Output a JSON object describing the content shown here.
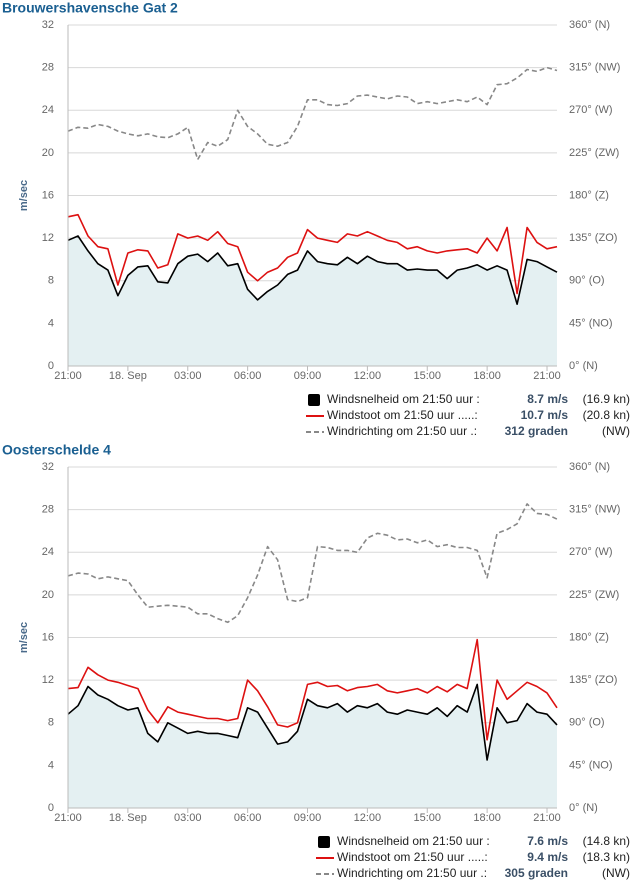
{
  "chart_data": [
    {
      "type": "line",
      "title": "Brouwershavensche Gat 2",
      "y_label": "m/sec",
      "x": [
        0,
        0.5,
        1,
        1.5,
        2,
        2.5,
        3,
        3.5,
        4,
        4.5,
        5,
        5.5,
        6,
        6.5,
        7,
        7.5,
        8,
        8.5,
        9,
        9.5,
        10,
        10.5,
        11,
        11.5,
        12,
        12.5,
        13,
        13.5,
        14,
        14.5,
        15,
        15.5,
        16,
        16.5,
        17,
        17.5,
        18,
        18.5,
        19,
        19.5,
        20,
        20.5,
        21,
        21.5,
        22,
        22.5,
        23,
        23.5,
        24,
        24.5
      ],
      "xlim": [
        0,
        24.5
      ],
      "xticks": [
        {
          "value": 0,
          "label": "21:00"
        },
        {
          "value": 3,
          "label": "18. Sep"
        },
        {
          "value": 6,
          "label": "03:00"
        },
        {
          "value": 9,
          "label": "06:00"
        },
        {
          "value": 12,
          "label": "09:00"
        },
        {
          "value": 15,
          "label": "12:00"
        },
        {
          "value": 18,
          "label": "15:00"
        },
        {
          "value": 21,
          "label": "18:00"
        },
        {
          "value": 24,
          "label": "21:00"
        }
      ],
      "ylim": [
        0,
        32
      ],
      "yticks": [
        0,
        4,
        8,
        12,
        16,
        20,
        24,
        28,
        32
      ],
      "y2lim": [
        0,
        360
      ],
      "y2ticks": [
        {
          "value": 0,
          "label": "0° (N)"
        },
        {
          "value": 45,
          "label": "45° (NO)"
        },
        {
          "value": 90,
          "label": "90° (O)"
        },
        {
          "value": 135,
          "label": "135° (ZO)"
        },
        {
          "value": 180,
          "label": "180° (Z)"
        },
        {
          "value": 225,
          "label": "225° (ZW)"
        },
        {
          "value": 270,
          "label": "270° (W)"
        },
        {
          "value": 315,
          "label": "315° (NW)"
        },
        {
          "value": 360,
          "label": "360° (N)"
        }
      ],
      "grid": true,
      "series": [
        {
          "name": "Windsnelheid om 21:50 uur :",
          "current": "8.7 m/s",
          "current_alt": "(16.9 kn)",
          "color": "#000000",
          "fill": "#e4f0f2",
          "values": [
            11.8,
            12.2,
            10.8,
            9.6,
            9.0,
            6.6,
            8.5,
            9.3,
            9.4,
            7.9,
            7.8,
            9.6,
            10.3,
            10.5,
            9.8,
            10.6,
            9.4,
            9.6,
            7.2,
            6.2,
            7.0,
            7.6,
            8.6,
            9.0,
            10.8,
            9.8,
            9.6,
            9.5,
            10.2,
            9.6,
            10.3,
            9.8,
            9.6,
            9.6,
            9.0,
            9.1,
            9.0,
            9.0,
            8.2,
            9.0,
            9.2,
            9.5,
            9.0,
            9.4,
            9.0,
            5.8,
            10.0,
            9.8,
            9.3,
            8.8
          ]
        },
        {
          "name": "Windstoot om 21:50 uur .....:",
          "current": "10.7 m/s",
          "current_alt": "(20.8 kn)",
          "color": "#dd1111",
          "values": [
            14.0,
            14.2,
            12.2,
            11.2,
            11.0,
            7.6,
            10.6,
            10.9,
            10.8,
            9.2,
            9.5,
            12.4,
            12.0,
            12.2,
            11.8,
            12.6,
            11.5,
            11.2,
            8.8,
            8.0,
            8.8,
            9.2,
            10.2,
            10.6,
            12.8,
            12.0,
            11.8,
            11.6,
            12.4,
            12.2,
            12.6,
            12.2,
            11.8,
            11.6,
            11.0,
            11.2,
            10.8,
            10.6,
            10.8,
            10.9,
            11.0,
            10.6,
            12.0,
            10.8,
            13.0,
            6.8,
            13.0,
            11.6,
            11.0,
            11.2
          ]
        },
        {
          "name": "Windrichting om 21:50 uur .:",
          "current": "312 graden",
          "current_alt": "(NW)",
          "color": "#888888",
          "dash": true,
          "axis": "y2",
          "values": [
            248,
            252,
            251,
            255,
            253,
            248,
            245,
            243,
            245,
            242,
            241,
            245,
            252,
            218,
            236,
            232,
            239,
            270,
            253,
            245,
            234,
            232,
            236,
            253,
            281,
            281,
            276,
            275,
            277,
            285,
            286,
            284,
            282,
            285,
            284,
            277,
            279,
            277,
            279,
            281,
            279,
            284,
            276,
            297,
            298,
            304,
            313,
            311,
            315,
            312
          ]
        }
      ]
    },
    {
      "type": "line",
      "title": "Oosterschelde 4",
      "y_label": "m/sec",
      "x": [
        0,
        0.5,
        1,
        1.5,
        2,
        2.5,
        3,
        3.5,
        4,
        4.5,
        5,
        5.5,
        6,
        6.5,
        7,
        7.5,
        8,
        8.5,
        9,
        9.5,
        10,
        10.5,
        11,
        11.5,
        12,
        12.5,
        13,
        13.5,
        14,
        14.5,
        15,
        15.5,
        16,
        16.5,
        17,
        17.5,
        18,
        18.5,
        19,
        19.5,
        20,
        20.5,
        21,
        21.5,
        22,
        22.5,
        23,
        23.5,
        24,
        24.5
      ],
      "xlim": [
        0,
        24.5
      ],
      "xticks": [
        {
          "value": 0,
          "label": "21:00"
        },
        {
          "value": 3,
          "label": "18. Sep"
        },
        {
          "value": 6,
          "label": "03:00"
        },
        {
          "value": 9,
          "label": "06:00"
        },
        {
          "value": 12,
          "label": "09:00"
        },
        {
          "value": 15,
          "label": "12:00"
        },
        {
          "value": 18,
          "label": "15:00"
        },
        {
          "value": 21,
          "label": "18:00"
        },
        {
          "value": 24,
          "label": "21:00"
        }
      ],
      "ylim": [
        0,
        32
      ],
      "yticks": [
        0,
        4,
        8,
        12,
        16,
        20,
        24,
        28,
        32
      ],
      "y2lim": [
        0,
        360
      ],
      "y2ticks": [
        {
          "value": 0,
          "label": "0° (N)"
        },
        {
          "value": 45,
          "label": "45° (NO)"
        },
        {
          "value": 90,
          "label": "90° (O)"
        },
        {
          "value": 135,
          "label": "135° (ZO)"
        },
        {
          "value": 180,
          "label": "180° (Z)"
        },
        {
          "value": 225,
          "label": "225° (ZW)"
        },
        {
          "value": 270,
          "label": "270° (W)"
        },
        {
          "value": 315,
          "label": "315° (NW)"
        },
        {
          "value": 360,
          "label": "360° (N)"
        }
      ],
      "grid": true,
      "series": [
        {
          "name": "Windsnelheid om 21:50 uur :",
          "current": "7.6 m/s",
          "current_alt": "(14.8 kn)",
          "color": "#000000",
          "fill": "#e4f0f2",
          "values": [
            8.8,
            9.6,
            11.4,
            10.6,
            10.2,
            9.6,
            9.2,
            9.4,
            7.0,
            6.2,
            8.0,
            7.5,
            7.0,
            7.2,
            7.0,
            7.0,
            6.8,
            6.6,
            9.4,
            9.0,
            7.5,
            6.0,
            6.2,
            7.2,
            10.2,
            9.6,
            9.4,
            9.8,
            9.0,
            9.6,
            9.4,
            9.8,
            9.0,
            8.8,
            9.2,
            9.0,
            8.8,
            9.4,
            8.6,
            9.6,
            9.0,
            11.6,
            4.5,
            9.4,
            8.0,
            8.2,
            9.8,
            9.0,
            8.8,
            7.8
          ]
        },
        {
          "name": "Windstoot om 21:50 uur .....:",
          "current": "9.4 m/s",
          "current_alt": "(18.3 kn)",
          "color": "#dd1111",
          "values": [
            11.2,
            11.3,
            13.2,
            12.5,
            12.0,
            11.8,
            11.5,
            11.2,
            9.2,
            8.0,
            9.5,
            9.0,
            8.8,
            8.6,
            8.4,
            8.4,
            8.2,
            8.4,
            12.0,
            11.0,
            9.5,
            7.8,
            7.6,
            8.0,
            11.6,
            11.8,
            11.4,
            11.5,
            11.0,
            11.3,
            11.4,
            11.6,
            11.0,
            10.8,
            11.0,
            11.2,
            10.8,
            11.4,
            10.9,
            11.6,
            11.2,
            15.8,
            6.4,
            12.0,
            10.2,
            11.0,
            11.8,
            11.4,
            10.8,
            9.4
          ]
        },
        {
          "name": "Windrichting om 21:50 uur .:",
          "current": "305 graden",
          "current_alt": "(NW)",
          "color": "#888888",
          "dash": true,
          "axis": "y2",
          "values": [
            245,
            248,
            247,
            242,
            244,
            242,
            240,
            225,
            212,
            213,
            214,
            213,
            212,
            205,
            205,
            200,
            196,
            203,
            222,
            246,
            276,
            262,
            220,
            218,
            222,
            276,
            275,
            272,
            272,
            270,
            285,
            290,
            288,
            283,
            284,
            280,
            283,
            276,
            278,
            275,
            275,
            272,
            243,
            290,
            294,
            300,
            321,
            311,
            310,
            305
          ]
        }
      ]
    }
  ]
}
